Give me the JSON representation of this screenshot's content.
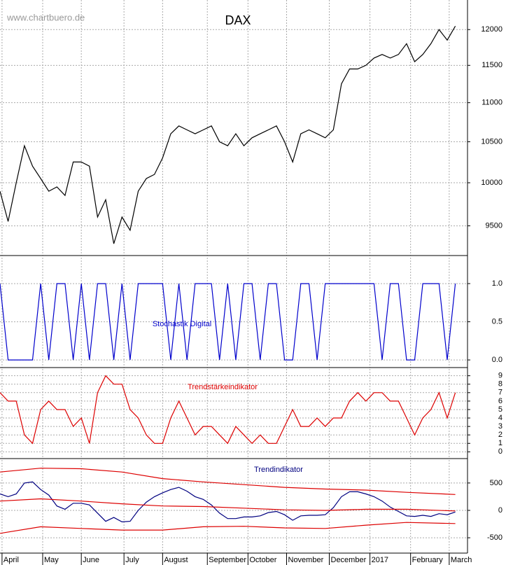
{
  "chart_data": [
    {
      "type": "line",
      "title": "DAX",
      "watermark": "www.chartbuero.de",
      "log": true,
      "grid": true,
      "color": "#000000",
      "x": [
        0,
        4,
        8,
        12,
        16,
        20,
        24,
        28,
        32,
        36,
        40,
        44,
        48,
        52,
        56,
        60,
        64,
        68,
        72,
        76,
        80,
        84,
        88,
        92,
        96,
        100,
        104,
        108,
        112,
        116,
        120,
        124,
        128,
        132,
        136,
        140,
        144,
        148,
        152,
        156,
        160,
        164,
        168,
        172,
        176,
        180,
        184,
        188,
        192,
        196,
        200,
        204,
        208,
        212,
        216,
        220,
        224
      ],
      "values": [
        9900,
        9550,
        10000,
        10450,
        10200,
        10050,
        9900,
        9950,
        9850,
        10250,
        10250,
        10200,
        9600,
        9800,
        9300,
        9600,
        9450,
        9900,
        10050,
        10100,
        10300,
        10600,
        10700,
        10650,
        10600,
        10650,
        10700,
        10500,
        10450,
        10600,
        10450,
        10550,
        10600,
        10650,
        10700,
        10500,
        10250,
        10600,
        10650,
        10600,
        10550,
        10650,
        11250,
        11450,
        11450,
        11500,
        11600,
        11650,
        11600,
        11650,
        11800,
        11550,
        11650,
        11800,
        12000,
        11850,
        12050
      ],
      "ylim": [
        9170,
        12430
      ],
      "yticks": [
        9500,
        10000,
        10500,
        11000,
        11500,
        12000
      ]
    },
    {
      "type": "line",
      "title": "Stochastik Digital",
      "grid": true,
      "color": "#0000cc",
      "x": [
        0,
        4,
        8,
        12,
        16,
        20,
        24,
        28,
        32,
        36,
        40,
        44,
        48,
        52,
        56,
        60,
        64,
        68,
        72,
        76,
        80,
        84,
        88,
        92,
        96,
        100,
        104,
        108,
        112,
        116,
        120,
        124,
        128,
        132,
        136,
        140,
        144,
        148,
        152,
        156,
        160,
        164,
        168,
        172,
        176,
        180,
        184,
        188,
        192,
        196,
        200,
        204,
        208,
        212,
        216,
        220,
        224
      ],
      "values": [
        1,
        0,
        0,
        0,
        0,
        1,
        0,
        1,
        1,
        0,
        1,
        0,
        1,
        1,
        0,
        1,
        0,
        1,
        1,
        1,
        1,
        0,
        1,
        0,
        1,
        1,
        1,
        0,
        1,
        0,
        1,
        1,
        0,
        1,
        1,
        0,
        0,
        1,
        1,
        0,
        1,
        1,
        1,
        1,
        1,
        1,
        1,
        0,
        1,
        1,
        0,
        0,
        1,
        1,
        1,
        0,
        1
      ],
      "ylim": [
        -0.1,
        1.34
      ],
      "yticks": [
        {
          "value": 0,
          "label": "0.0"
        },
        {
          "value": 0.5,
          "label": "0.5"
        },
        {
          "value": 1,
          "label": "1.0"
        }
      ]
    },
    {
      "type": "line",
      "title": "Trendstärkeindikator",
      "grid": true,
      "color": "#dd0000",
      "x": [
        0,
        4,
        8,
        12,
        16,
        20,
        24,
        28,
        32,
        36,
        40,
        44,
        48,
        52,
        56,
        60,
        64,
        68,
        72,
        76,
        80,
        84,
        88,
        92,
        96,
        100,
        104,
        108,
        112,
        116,
        120,
        124,
        128,
        132,
        136,
        140,
        144,
        148,
        152,
        156,
        160,
        164,
        168,
        172,
        176,
        180,
        184,
        188,
        192,
        196,
        200,
        204,
        208,
        212,
        216,
        220,
        224
      ],
      "values": [
        7,
        6,
        6,
        2,
        1,
        5,
        6,
        5,
        5,
        3,
        4,
        1,
        7,
        9,
        8,
        8,
        5,
        4,
        2,
        1,
        1,
        4,
        6,
        4,
        2,
        3,
        3,
        2,
        1,
        3,
        2,
        1,
        2,
        1,
        1,
        3,
        5,
        3,
        3,
        4,
        3,
        4,
        4,
        6,
        7,
        6,
        7,
        7,
        6,
        6,
        4,
        2,
        4,
        5,
        7,
        4,
        7
      ],
      "ylim": [
        -0.8,
        9.8
      ],
      "yticks": [
        0,
        1,
        2,
        3,
        4,
        5,
        6,
        7,
        8,
        9
      ]
    },
    {
      "type": "line",
      "title": "Trendindikator",
      "grid": true,
      "series": [
        {
          "color": "#000080",
          "x": [
            0,
            4,
            8,
            12,
            16,
            20,
            24,
            28,
            32,
            36,
            40,
            44,
            48,
            52,
            56,
            60,
            64,
            68,
            72,
            76,
            80,
            84,
            88,
            92,
            96,
            100,
            104,
            108,
            112,
            116,
            120,
            124,
            128,
            132,
            136,
            140,
            144,
            148,
            152,
            156,
            160,
            164,
            168,
            172,
            176,
            180,
            184,
            188,
            192,
            196,
            200,
            204,
            208,
            212,
            216,
            220,
            224
          ],
          "values": [
            300,
            250,
            300,
            500,
            520,
            380,
            280,
            80,
            20,
            130,
            130,
            100,
            -50,
            -200,
            -130,
            -210,
            -200,
            0,
            150,
            250,
            320,
            380,
            420,
            350,
            250,
            200,
            100,
            -50,
            -150,
            -150,
            -120,
            -120,
            -100,
            -40,
            -20,
            -80,
            -180,
            -100,
            -90,
            -90,
            -80,
            50,
            250,
            340,
            340,
            300,
            250,
            170,
            60,
            -20,
            -100,
            -110,
            -90,
            -110,
            -60,
            -80,
            -30
          ]
        },
        {
          "color": "#dd0000",
          "x": [
            0,
            20,
            40,
            60,
            80,
            100,
            120,
            140,
            160,
            180,
            200,
            224
          ],
          "values": [
            700,
            770,
            760,
            700,
            580,
            520,
            470,
            420,
            390,
            370,
            330,
            290
          ]
        },
        {
          "color": "#dd0000",
          "x": [
            0,
            20,
            40,
            60,
            80,
            100,
            120,
            140,
            160,
            180,
            200,
            224
          ],
          "values": [
            170,
            210,
            170,
            120,
            80,
            70,
            40,
            10,
            0,
            20,
            20,
            -10
          ]
        },
        {
          "color": "#dd0000",
          "x": [
            0,
            20,
            40,
            60,
            80,
            100,
            120,
            140,
            160,
            180,
            200,
            224
          ],
          "values": [
            -420,
            -300,
            -330,
            -360,
            -360,
            -300,
            -290,
            -320,
            -330,
            -270,
            -220,
            -240
          ]
        }
      ],
      "ylim": [
        -780,
        920
      ],
      "yticks": [
        -500,
        0,
        500
      ],
      "xlim": [
        0,
        230
      ],
      "xticks": [
        {
          "value": 1,
          "label": "April"
        },
        {
          "value": 21,
          "label": "May"
        },
        {
          "value": 40,
          "label": "June"
        },
        {
          "value": 61,
          "label": "July"
        },
        {
          "value": 80,
          "label": "August"
        },
        {
          "value": 102,
          "label": "September"
        },
        {
          "value": 122,
          "label": "October"
        },
        {
          "value": 141,
          "label": "November"
        },
        {
          "value": 162,
          "label": "December"
        },
        {
          "value": 182,
          "label": "2017"
        },
        {
          "value": 202,
          "label": "February"
        },
        {
          "value": 221,
          "label": "March"
        }
      ]
    }
  ]
}
